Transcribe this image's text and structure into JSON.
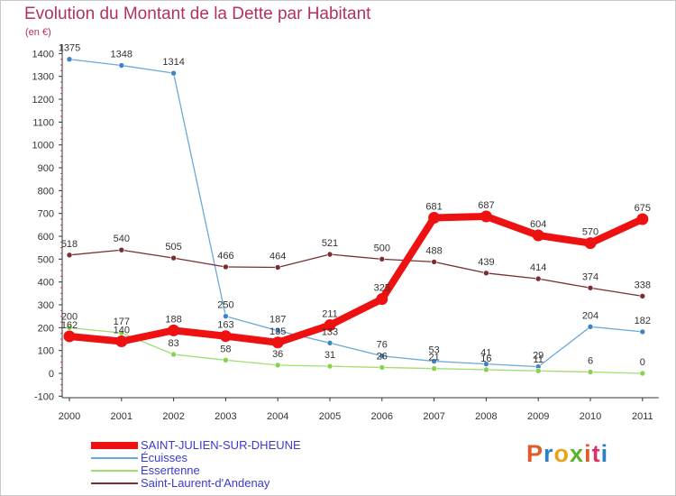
{
  "title": "Evolution du Montant de la Dette par Habitant",
  "subtitle": "(en €)",
  "logo": {
    "text": "Proxiti",
    "letter_colors": [
      "#e05a2a",
      "#2e7ec8",
      "#e9a31b",
      "#5cb030",
      "#e05a2a",
      "#d8326a",
      "#2e7ec8"
    ]
  },
  "chart_data": {
    "type": "line",
    "x": [
      "2000",
      "2001",
      "2002",
      "2003",
      "2004",
      "2005",
      "2006",
      "2007",
      "2008",
      "2009",
      "2010",
      "2011"
    ],
    "ylim": [
      -100,
      1400
    ],
    "yticks": [
      -100,
      0,
      100,
      200,
      300,
      400,
      500,
      600,
      700,
      800,
      900,
      1000,
      1100,
      1200,
      1300,
      1400
    ],
    "grid": false,
    "legend_position": "bottom-left",
    "series": [
      {
        "name": "SAINT-JULIEN-SUR-DHEUNE",
        "color": "#ee1111",
        "marker_color": "#ee1111",
        "highlight": true,
        "values": [
          162,
          140,
          188,
          163,
          135,
          211,
          325,
          681,
          687,
          604,
          570,
          675
        ]
      },
      {
        "name": "Écuisses",
        "color": "#6aaad8",
        "marker_color": "#3d83c5",
        "highlight": false,
        "values": [
          1375,
          1348,
          1314,
          250,
          187,
          133,
          76,
          53,
          41,
          29,
          204,
          182
        ]
      },
      {
        "name": "Essertenne",
        "color": "#9ede70",
        "marker_color": "#86d34d",
        "highlight": false,
        "values": [
          200,
          177,
          83,
          58,
          36,
          31,
          26,
          21,
          16,
          11,
          6,
          0
        ]
      },
      {
        "name": "Saint-Laurent-d'Andenay",
        "color": "#7a2e30",
        "marker_color": "#7a2e30",
        "highlight": false,
        "values": [
          518,
          540,
          505,
          466,
          464,
          521,
          500,
          488,
          439,
          414,
          374,
          338
        ]
      }
    ]
  }
}
